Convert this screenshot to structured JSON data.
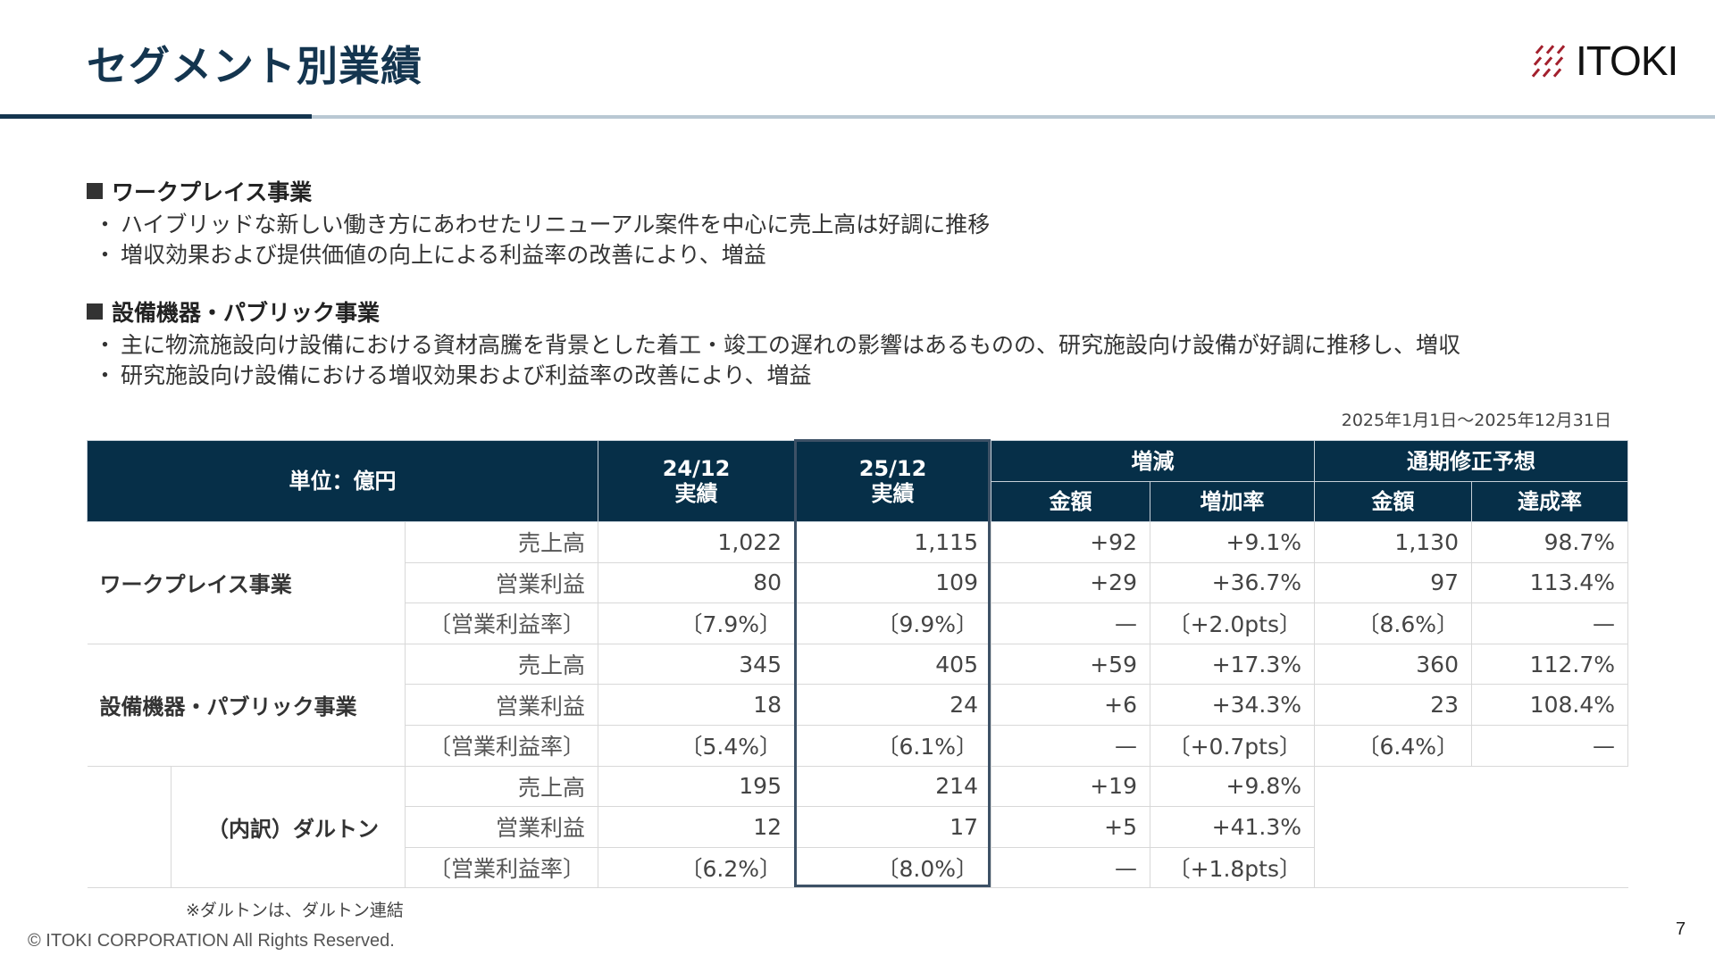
{
  "header": {
    "title": "セグメント別業績",
    "logo_text": "ITOKI",
    "logo_color": "#a3202d"
  },
  "sections": [
    {
      "heading": "ワークプレイス事業",
      "bullets": [
        "ハイブリッドな新しい働き方にあわせたリニューアル案件を中心に売上高は好調に推移",
        "増収効果および提供価値の向上による利益率の改善により、増益"
      ]
    },
    {
      "heading": "設備機器・パブリック事業",
      "bullets": [
        "主に物流施設向け設備における資材高騰を背景とした着工・竣工の遅れの影響はあるものの、研究施設向け設備が好調に推移し、増収",
        "研究施設向け設備における増収効果および利益率の改善により、増益"
      ]
    }
  ],
  "period": "2025年1月1日～2025年12月31日",
  "table": {
    "unit": "単位：億円",
    "col_prev": [
      "24/12",
      "実績"
    ],
    "col_curr": [
      "25/12",
      "実績"
    ],
    "col_change": "増減",
    "col_forecast": "通期修正予想",
    "sub_amount": "金額",
    "sub_rate": "増加率",
    "sub_fc_amount": "金額",
    "sub_achieve": "達成率",
    "groups": [
      {
        "name": "ワークプレイス事業",
        "rows": [
          [
            "売上高",
            "1,022",
            "1,115",
            "+92",
            "+9.1%",
            "1,130",
            "98.7%"
          ],
          [
            "営業利益",
            "80",
            "109",
            "+29",
            "+36.7%",
            "97",
            "113.4%"
          ],
          [
            "〔営業利益率〕",
            "〔7.9%〕",
            "〔9.9%〕",
            "—",
            "〔+2.0pts〕",
            "〔8.6%〕",
            "—"
          ]
        ]
      },
      {
        "name": "設備機器・パブリック事業",
        "rows": [
          [
            "売上高",
            "345",
            "405",
            "+59",
            "+17.3%",
            "360",
            "112.7%"
          ],
          [
            "営業利益",
            "18",
            "24",
            "+6",
            "+34.3%",
            "23",
            "108.4%"
          ],
          [
            "〔営業利益率〕",
            "〔5.4%〕",
            "〔6.1%〕",
            "—",
            "〔+0.7pts〕",
            "〔6.4%〕",
            "—"
          ]
        ]
      },
      {
        "name": "（内訳）ダルトン",
        "indent": true,
        "rows": [
          [
            "売上高",
            "195",
            "214",
            "+19",
            "+9.8%"
          ],
          [
            "営業利益",
            "12",
            "17",
            "+5",
            "+41.3%"
          ],
          [
            "〔営業利益率〕",
            "〔6.2%〕",
            "〔8.0%〕",
            "—",
            "〔+1.8pts〕"
          ]
        ]
      }
    ]
  },
  "footnote": "※ダルトンは、ダルトン連結",
  "copyright": "© ITOKI CORPORATION All Rights Reserved.",
  "page_number": "7"
}
